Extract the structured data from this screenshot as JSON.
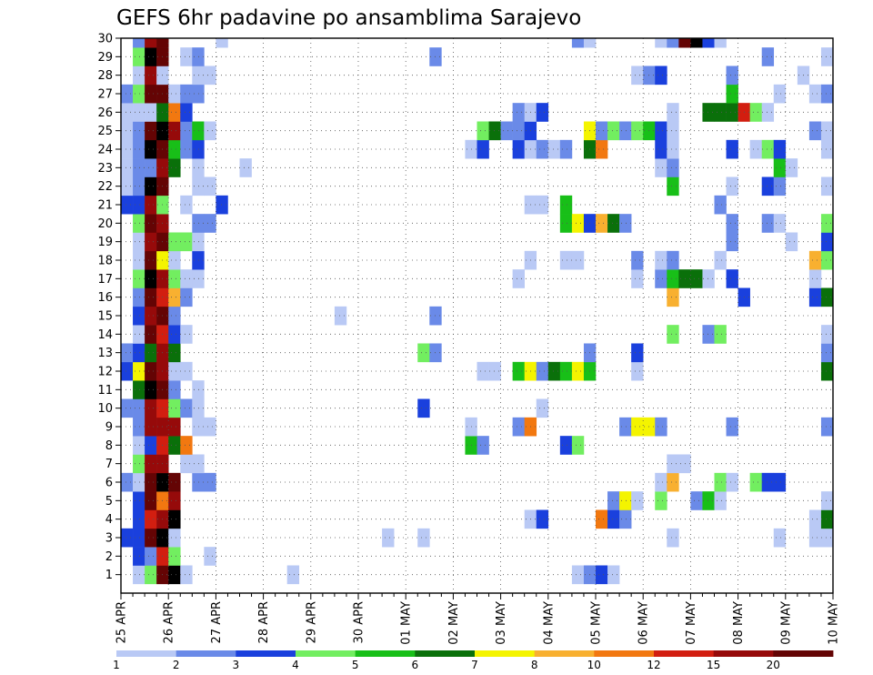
{
  "chart_data": {
    "type": "heatmap",
    "title": "GEFS 6hr padavine po ansamblima Sarajevo",
    "x_ticks": [
      "25 APR",
      "26 APR",
      "27 APR",
      "28 APR",
      "29 APR",
      "30 APR",
      "01 MAY",
      "02 MAY",
      "03 MAY",
      "04 MAY",
      "05 MAY",
      "06 MAY",
      "07 MAY",
      "08 MAY",
      "09 MAY",
      "10 MAY"
    ],
    "y_ticks": [
      "1",
      "2",
      "3",
      "4",
      "5",
      "6",
      "7",
      "8",
      "9",
      "10",
      "11",
      "12",
      "13",
      "14",
      "15",
      "16",
      "17",
      "18",
      "19",
      "20",
      "21",
      "22",
      "23",
      "24",
      "25",
      "26",
      "27",
      "28",
      "29",
      "30"
    ],
    "x_step_hours": 6,
    "n_steps": 61,
    "grid": true,
    "color_scale": {
      "boundaries": [
        "1",
        "2",
        "3",
        "4",
        "5",
        "6",
        "7",
        "8",
        "10",
        "12",
        "15",
        "20"
      ],
      "colors": [
        "#b9c9f5",
        "#6a8ae8",
        "#1a40dd",
        "#72ee60",
        "#18bf18",
        "#0a700a",
        "#f4f400",
        "#f8b030",
        "#f27810",
        "#d21e10",
        "#960a0a",
        "#640404"
      ]
    },
    "cells": [
      [
        1,
        1,
        1
      ],
      [
        1,
        2,
        4
      ],
      [
        1,
        3,
        12
      ],
      [
        1,
        4,
        13
      ],
      [
        1,
        5,
        1
      ],
      [
        1,
        14,
        1
      ],
      [
        1,
        38,
        1
      ],
      [
        1,
        39,
        2
      ],
      [
        1,
        40,
        3
      ],
      [
        1,
        41,
        1
      ],
      [
        2,
        1,
        3
      ],
      [
        2,
        2,
        2
      ],
      [
        2,
        3,
        10
      ],
      [
        2,
        4,
        4
      ],
      [
        2,
        7,
        1
      ],
      [
        3,
        0,
        3
      ],
      [
        3,
        1,
        3
      ],
      [
        3,
        2,
        12
      ],
      [
        3,
        3,
        13
      ],
      [
        3,
        4,
        1
      ],
      [
        3,
        22,
        1
      ],
      [
        3,
        25,
        1
      ],
      [
        3,
        46,
        1
      ],
      [
        3,
        55,
        1
      ],
      [
        3,
        58,
        1
      ],
      [
        3,
        59,
        1
      ],
      [
        3,
        60,
        1
      ],
      [
        4,
        1,
        3
      ],
      [
        4,
        2,
        10
      ],
      [
        4,
        3,
        11
      ],
      [
        4,
        4,
        13
      ],
      [
        4,
        34,
        1
      ],
      [
        4,
        35,
        3
      ],
      [
        4,
        40,
        9
      ],
      [
        4,
        41,
        3
      ],
      [
        4,
        42,
        2
      ],
      [
        4,
        58,
        1
      ],
      [
        4,
        59,
        6
      ],
      [
        5,
        1,
        3
      ],
      [
        5,
        2,
        12
      ],
      [
        5,
        3,
        9
      ],
      [
        5,
        4,
        11
      ],
      [
        5,
        41,
        2
      ],
      [
        5,
        42,
        7
      ],
      [
        5,
        43,
        1
      ],
      [
        5,
        45,
        4
      ],
      [
        5,
        48,
        2
      ],
      [
        5,
        49,
        5
      ],
      [
        5,
        50,
        1
      ],
      [
        5,
        59,
        1
      ],
      [
        6,
        0,
        2
      ],
      [
        6,
        1,
        1
      ],
      [
        6,
        2,
        12
      ],
      [
        6,
        3,
        13
      ],
      [
        6,
        4,
        12
      ],
      [
        6,
        6,
        2
      ],
      [
        6,
        7,
        2
      ],
      [
        6,
        45,
        1
      ],
      [
        6,
        46,
        8
      ],
      [
        6,
        50,
        4
      ],
      [
        6,
        51,
        1
      ],
      [
        6,
        53,
        4
      ],
      [
        6,
        54,
        3
      ],
      [
        6,
        55,
        3
      ],
      [
        7,
        1,
        4
      ],
      [
        7,
        2,
        11
      ],
      [
        7,
        3,
        11
      ],
      [
        7,
        5,
        1
      ],
      [
        7,
        6,
        1
      ],
      [
        7,
        46,
        1
      ],
      [
        7,
        47,
        1
      ],
      [
        8,
        1,
        1
      ],
      [
        8,
        2,
        3
      ],
      [
        8,
        3,
        10
      ],
      [
        8,
        4,
        6
      ],
      [
        8,
        5,
        9
      ],
      [
        8,
        29,
        5
      ],
      [
        8,
        30,
        2
      ],
      [
        8,
        37,
        3
      ],
      [
        8,
        38,
        4
      ],
      [
        9,
        1,
        2
      ],
      [
        9,
        2,
        11
      ],
      [
        9,
        3,
        11
      ],
      [
        9,
        4,
        11
      ],
      [
        9,
        6,
        1
      ],
      [
        9,
        7,
        1
      ],
      [
        9,
        29,
        1
      ],
      [
        9,
        33,
        2
      ],
      [
        9,
        34,
        9
      ],
      [
        9,
        42,
        2
      ],
      [
        9,
        43,
        7
      ],
      [
        9,
        44,
        7
      ],
      [
        9,
        45,
        2
      ],
      [
        9,
        51,
        2
      ],
      [
        9,
        59,
        2
      ],
      [
        10,
        0,
        2
      ],
      [
        10,
        1,
        2
      ],
      [
        10,
        2,
        11
      ],
      [
        10,
        3,
        10
      ],
      [
        10,
        4,
        4
      ],
      [
        10,
        5,
        2
      ],
      [
        10,
        6,
        1
      ],
      [
        10,
        25,
        3
      ],
      [
        10,
        35,
        1
      ],
      [
        11,
        1,
        6
      ],
      [
        11,
        2,
        13
      ],
      [
        11,
        3,
        12
      ],
      [
        11,
        4,
        2
      ],
      [
        11,
        6,
        1
      ],
      [
        12,
        0,
        3
      ],
      [
        12,
        1,
        7
      ],
      [
        12,
        2,
        12
      ],
      [
        12,
        3,
        11
      ],
      [
        12,
        4,
        1
      ],
      [
        12,
        5,
        1
      ],
      [
        12,
        30,
        1
      ],
      [
        12,
        31,
        1
      ],
      [
        12,
        33,
        5
      ],
      [
        12,
        34,
        7
      ],
      [
        12,
        35,
        2
      ],
      [
        12,
        36,
        6
      ],
      [
        12,
        37,
        5
      ],
      [
        12,
        38,
        7
      ],
      [
        12,
        39,
        5
      ],
      [
        12,
        43,
        1
      ],
      [
        12,
        59,
        6
      ],
      [
        12,
        60,
        2
      ],
      [
        13,
        0,
        2
      ],
      [
        13,
        1,
        3
      ],
      [
        13,
        2,
        6
      ],
      [
        13,
        3,
        11
      ],
      [
        13,
        4,
        6
      ],
      [
        13,
        25,
        4
      ],
      [
        13,
        26,
        2
      ],
      [
        13,
        39,
        2
      ],
      [
        13,
        43,
        3
      ],
      [
        13,
        59,
        2
      ],
      [
        14,
        1,
        1
      ],
      [
        14,
        2,
        12
      ],
      [
        14,
        3,
        10
      ],
      [
        14,
        4,
        3
      ],
      [
        14,
        5,
        1
      ],
      [
        14,
        46,
        4
      ],
      [
        14,
        49,
        2
      ],
      [
        14,
        50,
        4
      ],
      [
        14,
        59,
        1
      ],
      [
        15,
        1,
        3
      ],
      [
        15,
        2,
        11
      ],
      [
        15,
        3,
        12
      ],
      [
        15,
        4,
        2
      ],
      [
        15,
        18,
        1
      ],
      [
        15,
        26,
        2
      ],
      [
        16,
        1,
        2
      ],
      [
        16,
        2,
        12
      ],
      [
        16,
        3,
        10
      ],
      [
        16,
        4,
        8
      ],
      [
        16,
        5,
        2
      ],
      [
        16,
        46,
        8
      ],
      [
        16,
        52,
        3
      ],
      [
        16,
        58,
        3
      ],
      [
        16,
        59,
        6
      ],
      [
        16,
        60,
        2
      ],
      [
        17,
        1,
        4
      ],
      [
        17,
        2,
        13
      ],
      [
        17,
        3,
        11
      ],
      [
        17,
        4,
        4
      ],
      [
        17,
        5,
        1
      ],
      [
        17,
        6,
        1
      ],
      [
        17,
        33,
        1
      ],
      [
        17,
        43,
        1
      ],
      [
        17,
        45,
        2
      ],
      [
        17,
        46,
        5
      ],
      [
        17,
        47,
        6
      ],
      [
        17,
        48,
        6
      ],
      [
        17,
        49,
        1
      ],
      [
        17,
        51,
        3
      ],
      [
        17,
        58,
        1
      ],
      [
        18,
        1,
        1
      ],
      [
        18,
        2,
        12
      ],
      [
        18,
        3,
        7
      ],
      [
        18,
        4,
        1
      ],
      [
        18,
        6,
        3
      ],
      [
        18,
        34,
        1
      ],
      [
        18,
        37,
        1
      ],
      [
        18,
        38,
        1
      ],
      [
        18,
        43,
        2
      ],
      [
        18,
        45,
        1
      ],
      [
        18,
        46,
        2
      ],
      [
        18,
        50,
        1
      ],
      [
        18,
        58,
        8
      ],
      [
        18,
        59,
        4
      ],
      [
        18,
        60,
        1
      ],
      [
        19,
        1,
        1
      ],
      [
        19,
        2,
        11
      ],
      [
        19,
        3,
        12
      ],
      [
        19,
        4,
        4
      ],
      [
        19,
        5,
        4
      ],
      [
        19,
        6,
        1
      ],
      [
        19,
        51,
        2
      ],
      [
        19,
        56,
        1
      ],
      [
        19,
        59,
        3
      ],
      [
        20,
        1,
        4
      ],
      [
        20,
        2,
        12
      ],
      [
        20,
        3,
        11
      ],
      [
        20,
        6,
        2
      ],
      [
        20,
        7,
        2
      ],
      [
        20,
        37,
        5
      ],
      [
        20,
        38,
        7
      ],
      [
        20,
        39,
        3
      ],
      [
        20,
        40,
        8
      ],
      [
        20,
        41,
        6
      ],
      [
        20,
        42,
        2
      ],
      [
        20,
        51,
        2
      ],
      [
        20,
        54,
        2
      ],
      [
        20,
        55,
        1
      ],
      [
        20,
        59,
        4
      ],
      [
        21,
        0,
        3
      ],
      [
        21,
        1,
        3
      ],
      [
        21,
        2,
        11
      ],
      [
        21,
        3,
        4
      ],
      [
        21,
        5,
        1
      ],
      [
        21,
        8,
        3
      ],
      [
        21,
        34,
        1
      ],
      [
        21,
        35,
        1
      ],
      [
        21,
        37,
        5
      ],
      [
        21,
        50,
        2
      ],
      [
        22,
        0,
        1
      ],
      [
        22,
        1,
        2
      ],
      [
        22,
        2,
        13
      ],
      [
        22,
        3,
        12
      ],
      [
        22,
        6,
        1
      ],
      [
        22,
        7,
        1
      ],
      [
        22,
        46,
        5
      ],
      [
        22,
        51,
        1
      ],
      [
        22,
        54,
        3
      ],
      [
        22,
        55,
        2
      ],
      [
        22,
        59,
        1
      ],
      [
        23,
        0,
        1
      ],
      [
        23,
        1,
        2
      ],
      [
        23,
        2,
        2
      ],
      [
        23,
        3,
        11
      ],
      [
        23,
        4,
        6
      ],
      [
        23,
        6,
        1
      ],
      [
        23,
        10,
        1
      ],
      [
        23,
        45,
        1
      ],
      [
        23,
        46,
        2
      ],
      [
        23,
        55,
        5
      ],
      [
        23,
        56,
        1
      ],
      [
        24,
        0,
        1
      ],
      [
        24,
        1,
        2
      ],
      [
        24,
        2,
        13
      ],
      [
        24,
        3,
        12
      ],
      [
        24,
        4,
        5
      ],
      [
        24,
        5,
        2
      ],
      [
        24,
        6,
        3
      ],
      [
        24,
        29,
        1
      ],
      [
        24,
        30,
        3
      ],
      [
        24,
        33,
        3
      ],
      [
        24,
        34,
        1
      ],
      [
        24,
        35,
        2
      ],
      [
        24,
        36,
        1
      ],
      [
        24,
        37,
        2
      ],
      [
        24,
        39,
        6
      ],
      [
        24,
        40,
        9
      ],
      [
        24,
        45,
        3
      ],
      [
        24,
        46,
        1
      ],
      [
        24,
        51,
        3
      ],
      [
        24,
        53,
        1
      ],
      [
        24,
        54,
        4
      ],
      [
        24,
        55,
        3
      ],
      [
        24,
        59,
        1
      ],
      [
        24,
        60,
        4
      ],
      [
        25,
        0,
        1
      ],
      [
        25,
        1,
        2
      ],
      [
        25,
        2,
        12
      ],
      [
        25,
        3,
        13
      ],
      [
        25,
        4,
        11
      ],
      [
        25,
        5,
        2
      ],
      [
        25,
        6,
        5
      ],
      [
        25,
        7,
        1
      ],
      [
        25,
        30,
        4
      ],
      [
        25,
        31,
        6
      ],
      [
        25,
        32,
        2
      ],
      [
        25,
        33,
        2
      ],
      [
        25,
        34,
        3
      ],
      [
        25,
        39,
        7
      ],
      [
        25,
        40,
        2
      ],
      [
        25,
        41,
        4
      ],
      [
        25,
        42,
        2
      ],
      [
        25,
        43,
        4
      ],
      [
        25,
        44,
        5
      ],
      [
        25,
        45,
        3
      ],
      [
        25,
        46,
        1
      ],
      [
        25,
        58,
        2
      ],
      [
        25,
        59,
        1
      ],
      [
        26,
        0,
        1
      ],
      [
        26,
        1,
        1
      ],
      [
        26,
        2,
        1
      ],
      [
        26,
        3,
        6
      ],
      [
        26,
        4,
        9
      ],
      [
        26,
        5,
        3
      ],
      [
        26,
        33,
        2
      ],
      [
        26,
        34,
        1
      ],
      [
        26,
        35,
        3
      ],
      [
        26,
        46,
        1
      ],
      [
        26,
        49,
        6
      ],
      [
        26,
        50,
        6
      ],
      [
        26,
        51,
        6
      ],
      [
        26,
        52,
        10
      ],
      [
        26,
        53,
        4
      ],
      [
        26,
        54,
        1
      ],
      [
        27,
        0,
        2
      ],
      [
        27,
        1,
        4
      ],
      [
        27,
        2,
        12
      ],
      [
        27,
        3,
        12
      ],
      [
        27,
        4,
        1
      ],
      [
        27,
        5,
        2
      ],
      [
        27,
        6,
        2
      ],
      [
        27,
        51,
        5
      ],
      [
        27,
        55,
        1
      ],
      [
        27,
        58,
        1
      ],
      [
        27,
        59,
        2
      ],
      [
        28,
        1,
        1
      ],
      [
        28,
        2,
        11
      ],
      [
        28,
        3,
        1
      ],
      [
        28,
        6,
        1
      ],
      [
        28,
        7,
        1
      ],
      [
        28,
        43,
        1
      ],
      [
        28,
        44,
        2
      ],
      [
        28,
        45,
        3
      ],
      [
        28,
        51,
        2
      ],
      [
        28,
        57,
        1
      ],
      [
        29,
        1,
        4
      ],
      [
        29,
        2,
        13
      ],
      [
        29,
        3,
        12
      ],
      [
        29,
        5,
        1
      ],
      [
        29,
        6,
        2
      ],
      [
        29,
        26,
        2
      ],
      [
        29,
        54,
        2
      ],
      [
        29,
        59,
        1
      ],
      [
        30,
        1,
        2
      ],
      [
        30,
        2,
        11
      ],
      [
        30,
        3,
        12
      ],
      [
        30,
        8,
        1
      ],
      [
        30,
        38,
        2
      ],
      [
        30,
        39,
        1
      ],
      [
        30,
        45,
        1
      ],
      [
        30,
        46,
        2
      ],
      [
        30,
        47,
        12
      ],
      [
        30,
        48,
        13
      ],
      [
        30,
        49,
        3
      ],
      [
        30,
        50,
        1
      ],
      [
        31,
        0,
        1
      ],
      [
        31,
        1,
        2
      ],
      [
        31,
        2,
        12
      ],
      [
        31,
        3,
        13
      ],
      [
        31,
        4,
        1
      ],
      [
        31,
        5,
        1
      ],
      [
        31,
        45,
        1
      ],
      [
        31,
        50,
        2
      ],
      [
        31,
        51,
        10
      ],
      [
        31,
        52,
        2
      ],
      [
        31,
        53,
        3
      ],
      [
        31,
        54,
        1
      ]
    ]
  }
}
